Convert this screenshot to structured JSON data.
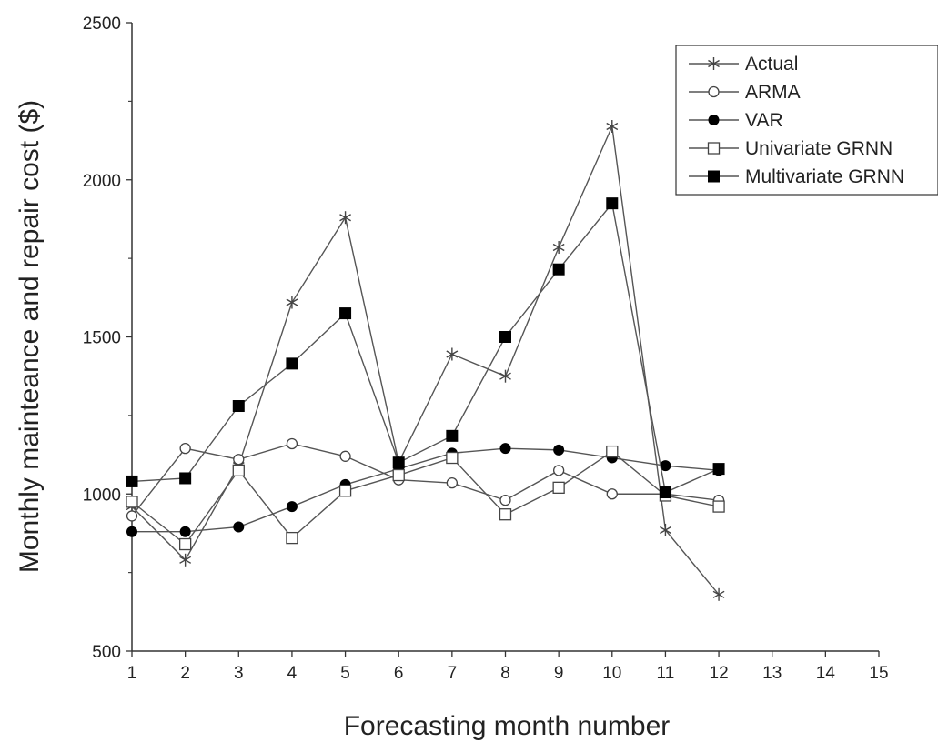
{
  "chart_data": {
    "type": "line",
    "xlabel": "Forecasting month number",
    "ylabel": "Monthly mainteance and repair cost ($)",
    "xlim": [
      1,
      15
    ],
    "ylim": [
      500,
      2500
    ],
    "xticks": [
      "1",
      "2",
      "3",
      "4",
      "5",
      "6",
      "7",
      "8",
      "9",
      "10",
      "11",
      "12",
      "13",
      "14",
      "15"
    ],
    "yticks": [
      "500",
      "1000",
      "1500",
      "2000",
      "2500"
    ],
    "grid": false,
    "legend_position": "top-right",
    "x": [
      1,
      2,
      3,
      4,
      5,
      6,
      7,
      8,
      9,
      10,
      11,
      12
    ],
    "series": [
      {
        "name": "Actual",
        "marker": "asterisk",
        "values": [
          960,
          790,
          1090,
          1610,
          1880,
          1100,
          1445,
          1375,
          1785,
          2170,
          885,
          680
        ]
      },
      {
        "name": "ARMA",
        "marker": "open-circle",
        "values": [
          930,
          1145,
          1110,
          1160,
          1120,
          1045,
          1035,
          980,
          1075,
          1000,
          1000,
          980
        ]
      },
      {
        "name": "VAR",
        "marker": "filled-circle",
        "values": [
          880,
          880,
          895,
          960,
          1030,
          1080,
          1130,
          1145,
          1140,
          1115,
          1090,
          1075
        ]
      },
      {
        "name": "Univariate GRNN",
        "marker": "open-square",
        "values": [
          975,
          840,
          1075,
          860,
          1010,
          1060,
          1115,
          935,
          1020,
          1135,
          995,
          960
        ]
      },
      {
        "name": "Multivariate GRNN",
        "marker": "filled-square",
        "values": [
          1040,
          1050,
          1280,
          1415,
          1575,
          1100,
          1185,
          1500,
          1715,
          1925,
          1005,
          1080
        ]
      }
    ]
  }
}
